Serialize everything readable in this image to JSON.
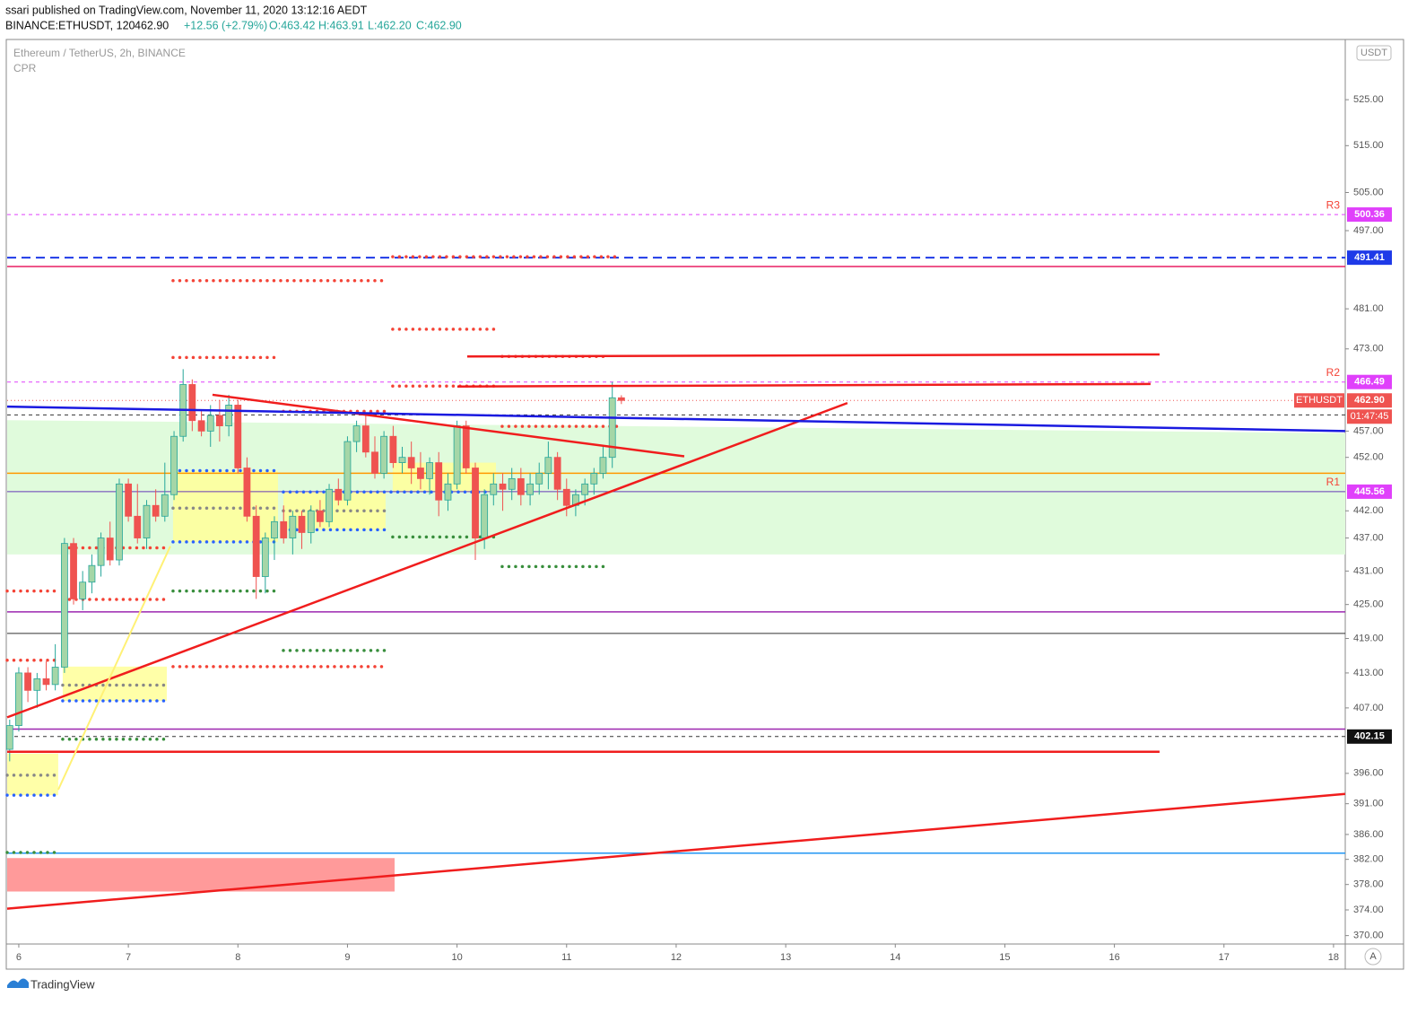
{
  "header": {
    "publisher": "ssari published on TradingView.com, November 11, 2020 13:12:16 AEDT",
    "symbol": "BINANCE:ETHUSDT, 120",
    "last": "462.90",
    "change": "+12.56 (+2.79%)",
    "ohlc": [
      "O:463.42",
      "H:463.91",
      "L:462.20",
      "C:462.90"
    ]
  },
  "chart_data": {
    "type": "candlestick",
    "title": "Ethereum / TetherUS, 2h, BINANCE",
    "subtitle": "CPR",
    "currency": "USDT",
    "log_scale": true,
    "up_color": "#a5d6a7",
    "up_border": "#26a69a",
    "down_color": "#ef5350",
    "x": [
      5.917,
      6.0,
      6.083,
      6.167,
      6.25,
      6.333,
      6.417,
      6.5,
      6.583,
      6.667,
      6.75,
      6.833,
      6.917,
      7.0,
      7.083,
      7.167,
      7.25,
      7.333,
      7.417,
      7.5,
      7.583,
      7.667,
      7.75,
      7.833,
      7.917,
      8.0,
      8.083,
      8.167,
      8.25,
      8.333,
      8.417,
      8.5,
      8.583,
      8.667,
      8.75,
      8.833,
      8.917,
      9.0,
      9.083,
      9.167,
      9.25,
      9.333,
      9.417,
      9.5,
      9.583,
      9.667,
      9.75,
      9.833,
      9.917,
      10.0,
      10.083,
      10.167,
      10.25,
      10.333,
      10.417,
      10.5,
      10.583,
      10.667,
      10.75,
      10.833,
      10.917,
      11.0,
      11.083,
      11.167,
      11.25,
      11.333,
      11.417,
      11.5
    ],
    "open": [
      400,
      404,
      413,
      410,
      412,
      411,
      414,
      436,
      426,
      429,
      432,
      437,
      433,
      447,
      441,
      437,
      443,
      441,
      445,
      456,
      466,
      459,
      457,
      460,
      458,
      462,
      450,
      441,
      430,
      437,
      440,
      437,
      441,
      438,
      442,
      440,
      446,
      444,
      455,
      458,
      453,
      449,
      456,
      451,
      452,
      450,
      448,
      451,
      444,
      447,
      458,
      450,
      437,
      445,
      447,
      446,
      448,
      445,
      447,
      449,
      452,
      446,
      443,
      445,
      447,
      449,
      452,
      463.42
    ],
    "high": [
      405,
      414,
      414,
      413,
      415,
      418,
      437,
      437,
      431,
      434,
      438,
      440,
      448,
      448,
      447,
      444,
      446,
      451,
      457,
      469,
      467,
      461,
      462,
      463,
      464,
      463,
      452,
      443,
      438,
      441,
      443,
      442,
      442,
      443,
      444,
      447,
      448,
      456,
      459,
      460,
      456,
      457,
      458,
      454,
      455,
      453,
      452,
      453,
      449,
      459,
      459,
      451,
      446,
      449,
      449,
      450,
      450,
      449,
      451,
      455,
      453,
      448,
      446,
      448,
      450,
      454,
      466.5,
      463.91
    ],
    "low": [
      398,
      403,
      408,
      407,
      410,
      410,
      413,
      425,
      424,
      427,
      430,
      432,
      432,
      440,
      436,
      435,
      440,
      440,
      444,
      455,
      457,
      456,
      454,
      455,
      456,
      449,
      440,
      426,
      427,
      433,
      436,
      434,
      435,
      436,
      439,
      439,
      443,
      443,
      453,
      452,
      448,
      448,
      450,
      449,
      447,
      446,
      445,
      441,
      442,
      446,
      449,
      433,
      435,
      443,
      442,
      444,
      443,
      443,
      445,
      446,
      444,
      441,
      441,
      443,
      445,
      448,
      450,
      462.2
    ],
    "close": [
      404,
      413,
      410,
      412,
      411,
      414,
      436,
      426,
      429,
      432,
      437,
      433,
      447,
      441,
      437,
      443,
      441,
      445,
      456,
      466,
      459,
      457,
      460,
      458,
      462,
      450,
      441,
      430,
      437,
      440,
      437,
      441,
      438,
      442,
      440,
      446,
      444,
      455,
      458,
      453,
      449,
      456,
      451,
      452,
      450,
      448,
      451,
      444,
      447,
      458,
      450,
      437,
      445,
      447,
      446,
      448,
      445,
      447,
      449,
      452,
      446,
      443,
      445,
      447,
      449,
      452,
      463.42,
      462.9
    ],
    "xlim": [
      5.894,
      18.107
    ],
    "xticks": [
      6,
      7,
      8,
      9,
      10,
      11,
      12,
      13,
      14,
      15,
      16,
      17,
      18
    ],
    "ylim": [
      368.7,
      538.2
    ],
    "yticks": [
      {
        "value": 525,
        "label": "525.00"
      },
      {
        "value": 515,
        "label": "515.00"
      },
      {
        "value": 505,
        "label": "505.00"
      },
      {
        "value": 497,
        "label": "497.00"
      },
      {
        "value": 481,
        "label": "481.00"
      },
      {
        "value": 473,
        "label": "473.00"
      },
      {
        "value": 457,
        "label": "457.00"
      },
      {
        "value": 452,
        "label": "452.00"
      },
      {
        "value": 442,
        "label": "442.00"
      },
      {
        "value": 437,
        "label": "437.00"
      },
      {
        "value": 431,
        "label": "431.00"
      },
      {
        "value": 425,
        "label": "425.00"
      },
      {
        "value": 419,
        "label": "419.00"
      },
      {
        "value": 413,
        "label": "413.00"
      },
      {
        "value": 407,
        "label": "407.00"
      },
      {
        "value": 396,
        "label": "396.00"
      },
      {
        "value": 391,
        "label": "391.00"
      },
      {
        "value": 386,
        "label": "386.00"
      },
      {
        "value": 382,
        "label": "382.00"
      },
      {
        "value": 378,
        "label": "378.00"
      },
      {
        "value": 374,
        "label": "374.00"
      },
      {
        "value": 370,
        "label": "370.00"
      }
    ],
    "zones": [
      {
        "color": "#e0fbdc",
        "from": 5.894,
        "to": 18.107,
        "top": [
          459.1,
          456.6
        ],
        "bottom": 434
      },
      {
        "color": "#ff9a9a",
        "from": 5.894,
        "to": 9.43,
        "top": [
          382.2,
          382.2
        ],
        "bottom": 376.9
      }
    ],
    "cpr_zones": [
      {
        "from": 7.408,
        "to": 8.366,
        "top": 449.5,
        "bottom": 436.3
      },
      {
        "from": 6.401,
        "to": 7.351,
        "top": 414.1,
        "bottom": 408.2
      },
      {
        "from": 5.894,
        "to": 6.36,
        "top": 399.3,
        "bottom": 392.4
      },
      {
        "from": 8.415,
        "to": 9.348,
        "top": 445.5,
        "bottom": 438.5
      },
      {
        "from": 9.413,
        "to": 10.355,
        "top": 451,
        "bottom": 445.5
      }
    ],
    "cpr_levels": [
      {
        "from": 7.408,
        "to": 9.348,
        "price": 486.7,
        "color": "#f44336"
      },
      {
        "from": 9.413,
        "to": 10.355,
        "price": 476.9,
        "color": "#f44336"
      },
      {
        "from": 9.413,
        "to": 11.5,
        "price": 491.6,
        "color": "#f44336"
      },
      {
        "from": 10.412,
        "to": 11.337,
        "price": 471.5,
        "color": "#f44336"
      },
      {
        "from": 7.408,
        "to": 8.366,
        "price": 471.3,
        "color": "#f44336"
      },
      {
        "from": 9.413,
        "to": 10.355,
        "price": 465.7,
        "color": "#f44336"
      },
      {
        "from": 8.415,
        "to": 9.348,
        "price": 460.8,
        "color": "#f44336"
      },
      {
        "from": 10.412,
        "to": 11.5,
        "price": 457.9,
        "color": "#f44336"
      },
      {
        "from": 7.408,
        "to": 8.366,
        "price": 449.5,
        "color": "#2962ff"
      },
      {
        "from": 7.408,
        "to": 8.366,
        "price": 442.5,
        "color": "#888888"
      },
      {
        "from": 6.401,
        "to": 7.351,
        "price": 435.2,
        "color": "#f44336"
      },
      {
        "from": 5.894,
        "to": 6.36,
        "price": 427.4,
        "color": "#f44336"
      },
      {
        "from": 6.401,
        "to": 7.351,
        "price": 425.9,
        "color": "#f44336"
      },
      {
        "from": 7.408,
        "to": 8.366,
        "price": 427.4,
        "color": "#388e3c"
      },
      {
        "from": 7.408,
        "to": 8.366,
        "price": 436.3,
        "color": "#2962ff"
      },
      {
        "from": 9.413,
        "to": 10.355,
        "price": 437.2,
        "color": "#388e3c"
      },
      {
        "from": 10.412,
        "to": 11.337,
        "price": 431.8,
        "color": "#388e3c"
      },
      {
        "from": 8.415,
        "to": 9.348,
        "price": 416.9,
        "color": "#388e3c"
      },
      {
        "from": 7.408,
        "to": 9.348,
        "price": 414.1,
        "color": "#f44336"
      },
      {
        "from": 5.894,
        "to": 6.36,
        "price": 415.2,
        "color": "#f44336"
      },
      {
        "from": 6.401,
        "to": 7.351,
        "price": 408.2,
        "color": "#2962ff"
      },
      {
        "from": 6.401,
        "to": 7.351,
        "price": 410.9,
        "color": "#888888"
      },
      {
        "from": 6.401,
        "to": 7.351,
        "price": 401.7,
        "color": "#388e3c"
      },
      {
        "from": 5.894,
        "to": 6.36,
        "price": 392.4,
        "color": "#2962ff"
      },
      {
        "from": 5.894,
        "to": 6.36,
        "price": 395.7,
        "color": "#888888"
      },
      {
        "from": 5.894,
        "to": 6.36,
        "price": 383.1,
        "color": "#388e3c"
      },
      {
        "from": 8.415,
        "to": 10.355,
        "price": 445.5,
        "color": "#2962ff"
      },
      {
        "from": 8.415,
        "to": 9.348,
        "price": 438.5,
        "color": "#2962ff"
      },
      {
        "from": 8.415,
        "to": 9.348,
        "price": 442,
        "color": "#888888"
      }
    ],
    "levels": [
      {
        "price": 500.36,
        "color": "#e040fb",
        "dash": "4 4",
        "badge": "500.36",
        "badge_color": "#e040fb",
        "tag": "R3"
      },
      {
        "price": 491.41,
        "color": "#1e3ae8",
        "dash": "10 6",
        "width": 2,
        "badge": "491.41",
        "badge_color": "#1e3ae8"
      },
      {
        "price": 489.6,
        "color": "#e91e63",
        "dash": "",
        "width": 1.5
      },
      {
        "price": 466.49,
        "color": "#e040fb",
        "dash": "4 4",
        "badge": "466.49",
        "badge_color": "#e040fb",
        "tag": "R2"
      },
      {
        "price": 462.9,
        "color": "#ef5350",
        "dash": "1 3",
        "badge": "462.90",
        "badge_color": "#ef5350"
      },
      {
        "price": 460.1,
        "color": "#333333",
        "dash": "4 4"
      },
      {
        "price": 449,
        "color": "#ff9800",
        "dash": "",
        "width": 1.5
      },
      {
        "price": 445.56,
        "color": "#673ab7",
        "dash": "",
        "badge": "445.56",
        "badge_color": "#e040fb",
        "tag": "R1"
      },
      {
        "price": 423.7,
        "color": "#9c27b0",
        "dash": "",
        "width": 1.5
      },
      {
        "price": 419.9,
        "color": "#333333",
        "dash": ""
      },
      {
        "price": 403.4,
        "color": "#9c27b0",
        "dash": "",
        "width": 1.5
      },
      {
        "price": 402.15,
        "color": "#333333",
        "dash": "4 4",
        "badge": "402.15",
        "badge_color": "#111111"
      },
      {
        "price": 383,
        "color": "#2196f3",
        "dash": "",
        "width": 1.5
      }
    ],
    "trendlines": [
      {
        "color": "#f01d1d",
        "points": [
          [
            5.894,
            405.4
          ],
          [
            13.563,
            462.4
          ]
        ]
      },
      {
        "color": "#f01d1d",
        "points": [
          [
            5.894,
            374.2
          ],
          [
            18.106,
            392.6
          ]
        ]
      },
      {
        "color": "#f01d1d",
        "points": [
          [
            7.768,
            464.0
          ],
          [
            12.074,
            452.2
          ]
        ]
      },
      {
        "color": "#f01d1d",
        "points": [
          [
            10.093,
            471.5
          ],
          [
            16.412,
            471.9
          ]
        ]
      },
      {
        "color": "#f01d1d",
        "points": [
          [
            10.003,
            465.6
          ],
          [
            16.33,
            466.1
          ]
        ]
      },
      {
        "color": "#1a1ae0",
        "points": [
          [
            5.894,
            461.7
          ],
          [
            18.106,
            457.0
          ]
        ]
      },
      {
        "color": "#f01d1d",
        "points": [
          [
            5.894,
            399.6
          ],
          [
            16.412,
            399.6
          ]
        ]
      },
      {
        "color": "#fff176",
        "points": [
          [
            6.36,
            393.3
          ],
          [
            7.383,
            435.5
          ]
        ]
      }
    ],
    "symbol_tag": "ETHUSDT",
    "countdown": "01:47:45",
    "auto": "A"
  },
  "footer": {
    "brand": "TradingView"
  }
}
